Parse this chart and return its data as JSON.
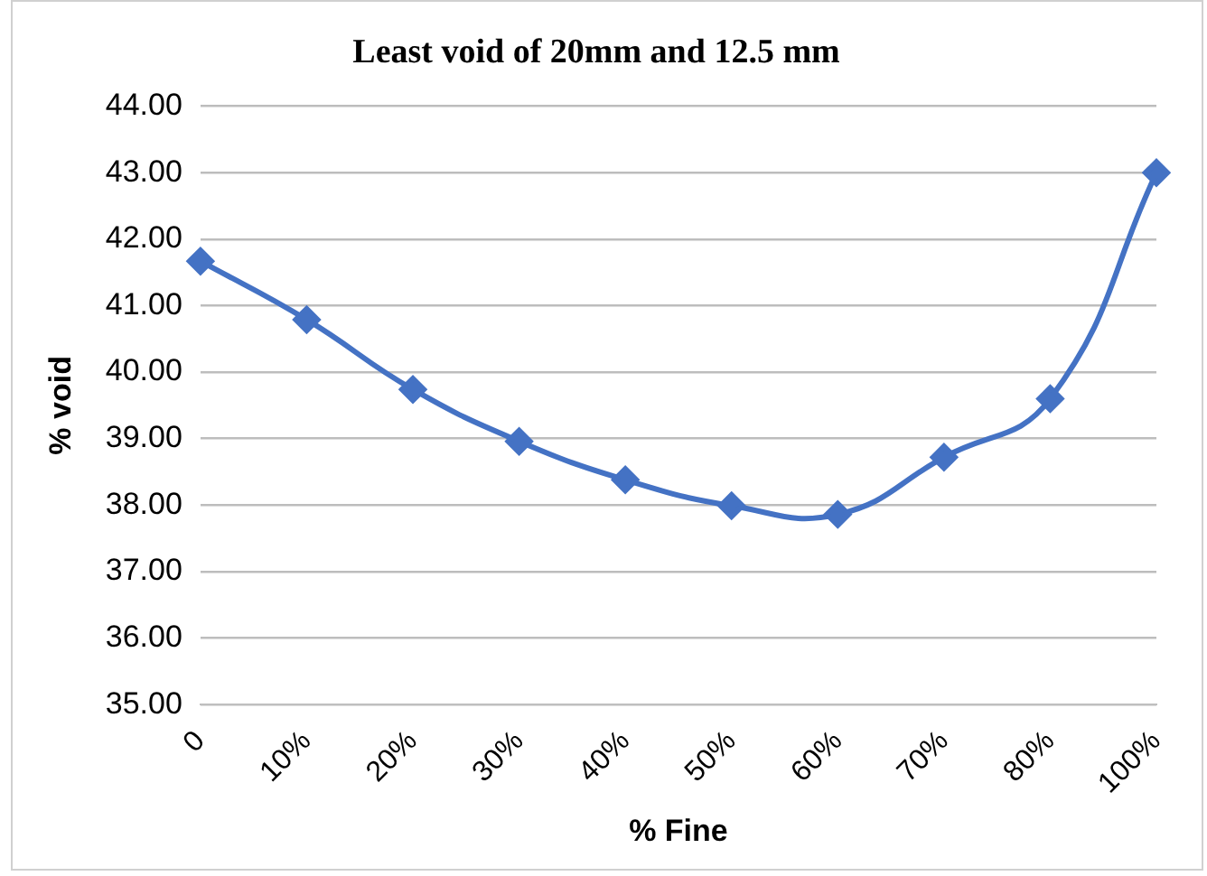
{
  "chart_data": {
    "type": "line",
    "title": "Least void of 20mm and 12.5 mm",
    "xlabel": "% Fine",
    "ylabel": "% void",
    "categories": [
      "0",
      "10%",
      "20%",
      "30%",
      "40%",
      "50%",
      "60%",
      "70%",
      "80%",
      "100%"
    ],
    "series": [
      {
        "color": "#4472c4",
        "values": [
          41.67,
          40.79,
          39.74,
          38.96,
          38.38,
          37.99,
          37.86,
          38.72,
          39.6,
          43.0
        ]
      }
    ],
    "ylim": [
      35,
      44
    ],
    "yticks": [
      {
        "value": 35,
        "label": "35.00"
      },
      {
        "value": 36,
        "label": "36.00"
      },
      {
        "value": 37,
        "label": "37.00"
      },
      {
        "value": 38,
        "label": "38.00"
      },
      {
        "value": 39,
        "label": "39.00"
      },
      {
        "value": 40,
        "label": "40.00"
      },
      {
        "value": 41,
        "label": "41.00"
      },
      {
        "value": 42,
        "label": "42.00"
      },
      {
        "value": 43,
        "label": "43.00"
      },
      {
        "value": 44,
        "label": "44.00"
      }
    ],
    "grid": "y",
    "legend": false,
    "marker": "diamond",
    "line_style": "solid"
  }
}
